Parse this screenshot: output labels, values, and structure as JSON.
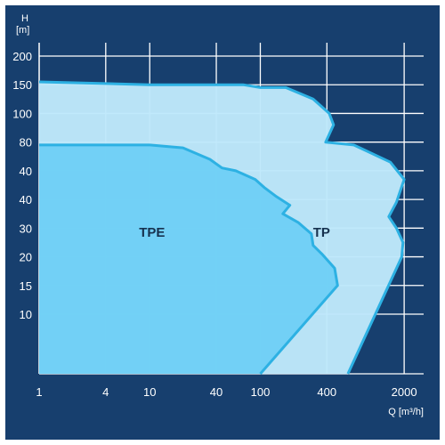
{
  "chart_data": {
    "type": "area",
    "title": "",
    "xlabel": "Q [m³/h]",
    "ylabel": "H [m]",
    "x_scale": "log",
    "xlim": [
      1,
      3000
    ],
    "x_ticks": [
      {
        "value": 1,
        "label": "1"
      },
      {
        "value": 4,
        "label": "4"
      },
      {
        "value": 10,
        "label": "10"
      },
      {
        "value": 40,
        "label": "40"
      },
      {
        "value": 100,
        "label": "100"
      },
      {
        "value": 400,
        "label": "400"
      },
      {
        "value": 2000,
        "label": "2000"
      }
    ],
    "x_grid_values": [
      1,
      4,
      10,
      40,
      100,
      400,
      2000
    ],
    "y_axis_note": "nonuniform axis; tick labels printed as shown",
    "y_ticks": [
      {
        "label": "200",
        "h_index": 13
      },
      {
        "label": "150",
        "h_index": 12
      },
      {
        "label": "100",
        "h_index": 11
      },
      {
        "label": "80",
        "h_index": 10
      },
      {
        "label": "40",
        "h_index": 9
      },
      {
        "label": "40",
        "h_index": 8
      },
      {
        "label": "30",
        "h_index": 7
      },
      {
        "label": "20",
        "h_index": 6
      },
      {
        "label": "15",
        "h_index": 5
      },
      {
        "label": "10",
        "h_index": 4
      }
    ],
    "grid": true,
    "series": [
      {
        "name": "TP",
        "color": "#bfe8fb",
        "stroke": "#2db1e3",
        "label_at": {
          "q": 300,
          "h_index": 6.7
        },
        "boundary": [
          {
            "q": 1,
            "h_index": 12.1
          },
          {
            "q": 10,
            "h_index": 12.0
          },
          {
            "q": 70,
            "h_index": 12.0
          },
          {
            "q": 100,
            "h_index": 11.9
          },
          {
            "q": 170,
            "h_index": 11.9
          },
          {
            "q": 300,
            "h_index": 11.5
          },
          {
            "q": 420,
            "h_index": 11.0
          },
          {
            "q": 460,
            "h_index": 10.6
          },
          {
            "q": 390,
            "h_index": 10.0
          },
          {
            "q": 700,
            "h_index": 9.9
          },
          {
            "q": 1500,
            "h_index": 9.3
          },
          {
            "q": 2000,
            "h_index": 8.7
          },
          {
            "q": 1700,
            "h_index": 7.9
          },
          {
            "q": 1450,
            "h_index": 7.4
          },
          {
            "q": 1700,
            "h_index": 7.0
          },
          {
            "q": 1950,
            "h_index": 6.5
          },
          {
            "q": 1900,
            "h_index": 6.0
          },
          {
            "q": 620,
            "h_index": 0.0
          },
          {
            "q": 1,
            "h_index": 0.0
          }
        ]
      },
      {
        "name": "TPE",
        "color": "#6fd0f6",
        "stroke": "#2db1e3",
        "label_at": {
          "q": 8,
          "h_index": 6.7
        },
        "boundary": [
          {
            "q": 1,
            "h_index": 9.9
          },
          {
            "q": 10,
            "h_index": 9.9
          },
          {
            "q": 20,
            "h_index": 9.8
          },
          {
            "q": 35,
            "h_index": 9.4
          },
          {
            "q": 45,
            "h_index": 9.1
          },
          {
            "q": 60,
            "h_index": 9.0
          },
          {
            "q": 90,
            "h_index": 8.7
          },
          {
            "q": 110,
            "h_index": 8.4
          },
          {
            "q": 140,
            "h_index": 8.1
          },
          {
            "q": 185,
            "h_index": 7.8
          },
          {
            "q": 160,
            "h_index": 7.5
          },
          {
            "q": 220,
            "h_index": 7.2
          },
          {
            "q": 290,
            "h_index": 6.8
          },
          {
            "q": 300,
            "h_index": 6.4
          },
          {
            "q": 360,
            "h_index": 6.1
          },
          {
            "q": 470,
            "h_index": 5.6
          },
          {
            "q": 500,
            "h_index": 5.0
          },
          {
            "q": 100,
            "h_index": 0.0
          },
          {
            "q": 1,
            "h_index": 0.0
          }
        ]
      }
    ]
  }
}
